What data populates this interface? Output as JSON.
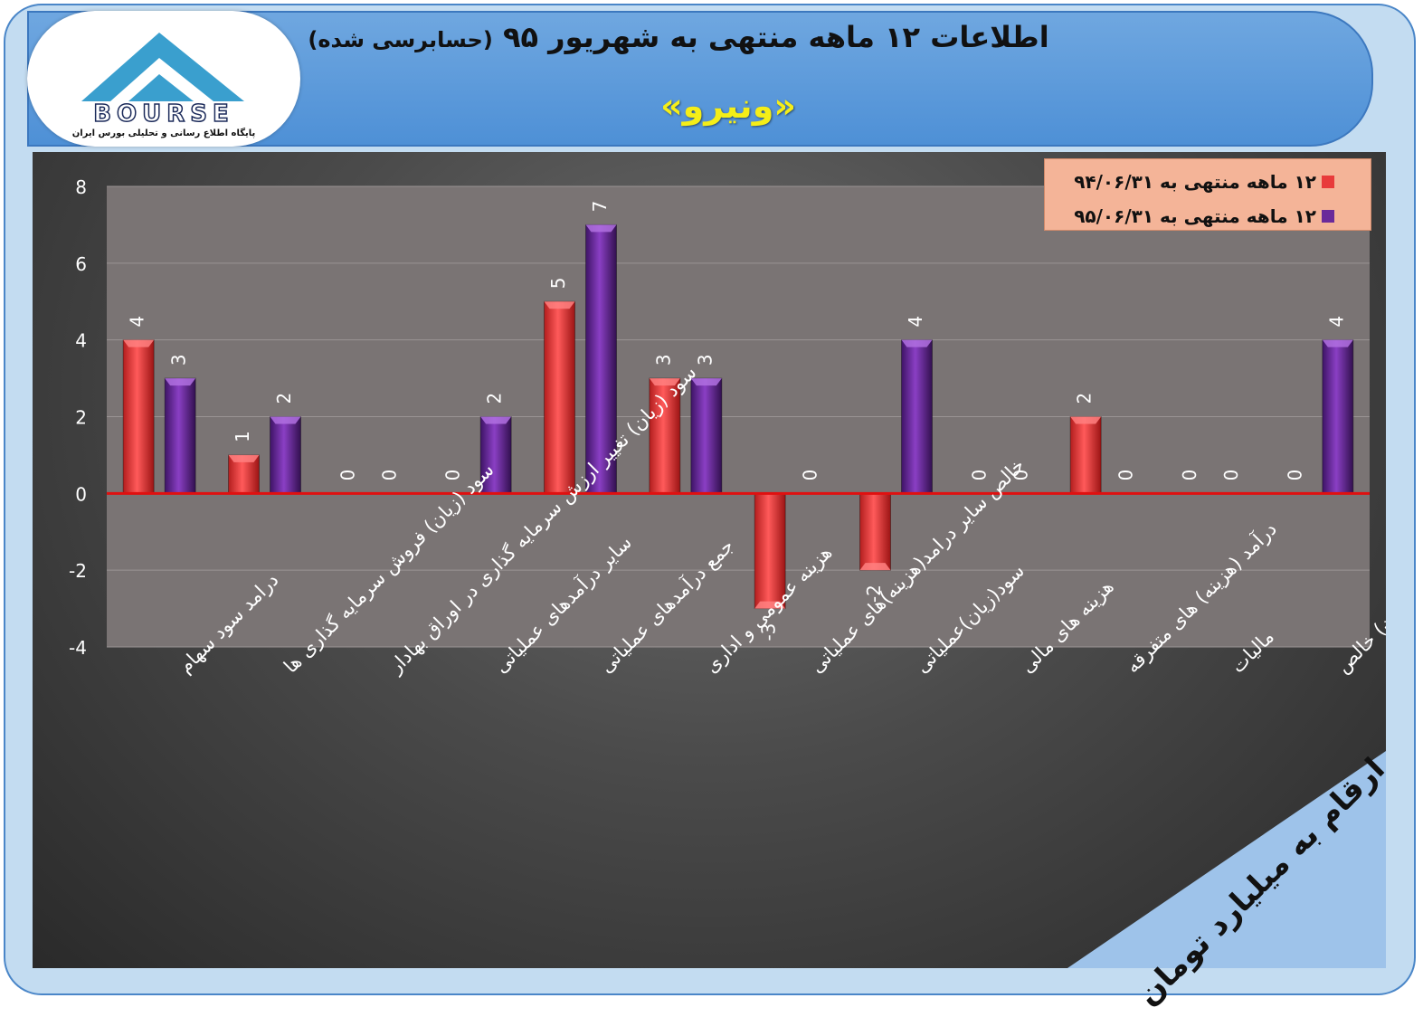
{
  "header": {
    "title": "اطلاعات ۱۲ ماهه منتهی به شهریور ۹۵",
    "title_suffix": "(حسابرسی شده)",
    "company": "«ونیرو»"
  },
  "logo": {
    "brand": "BOURSE",
    "tagline": "پایگاه اطلاع رسانی و تحلیلی بورس ایران"
  },
  "legend": {
    "items": [
      {
        "label": "۱۲ ماهه منتهی به ۹۴/۰۶/۳۱",
        "color": "#e83b3b"
      },
      {
        "label": "۱۲ ماهه منتهی به ۹۵/۰۶/۳۱",
        "color": "#6a2a9a"
      }
    ]
  },
  "note": "ارقام به میلیارد تومان",
  "chart_data": {
    "type": "bar",
    "categories": [
      "درامد سود سهام",
      "سود (زیان) فروش سرمایه گذاری ها",
      "سود (زیان) تغییر ارزش سرمایه گذاری در اوراق بهادار",
      "سایر درآمدهای عملیاتی",
      "جمع درآمدهای عملیاتی",
      "هزینه عمومی و اداری",
      "خالص سایر درامد(هزینه)های عملیاتی",
      "سود(زیان)عملیاتی",
      "هزینه های مالی",
      "درآمد (هزینه) های متفرقه",
      "مالیات",
      "سود(زیان) خالص"
    ],
    "series": [
      {
        "name": "۱۲ ماهه منتهی به ۹۴/۰۶/۳۱",
        "values": [
          4,
          1,
          0,
          0,
          5,
          3,
          -3,
          -2,
          0,
          2,
          0,
          0
        ]
      },
      {
        "name": "۱۲ ماهه منتهی به ۹۵/۰۶/۳۱",
        "values": [
          3,
          2,
          0,
          2,
          7,
          3,
          0,
          4,
          0,
          0,
          0,
          4
        ]
      }
    ],
    "ylim": [
      -4,
      8
    ],
    "yticks": [
      -4,
      -2,
      0,
      2,
      4,
      6,
      8
    ],
    "grid": true,
    "legend_position": "top-right",
    "colors": {
      "series1": "#e83b3b",
      "series2": "#6a2a9a",
      "zero_line": "#e01010"
    }
  }
}
